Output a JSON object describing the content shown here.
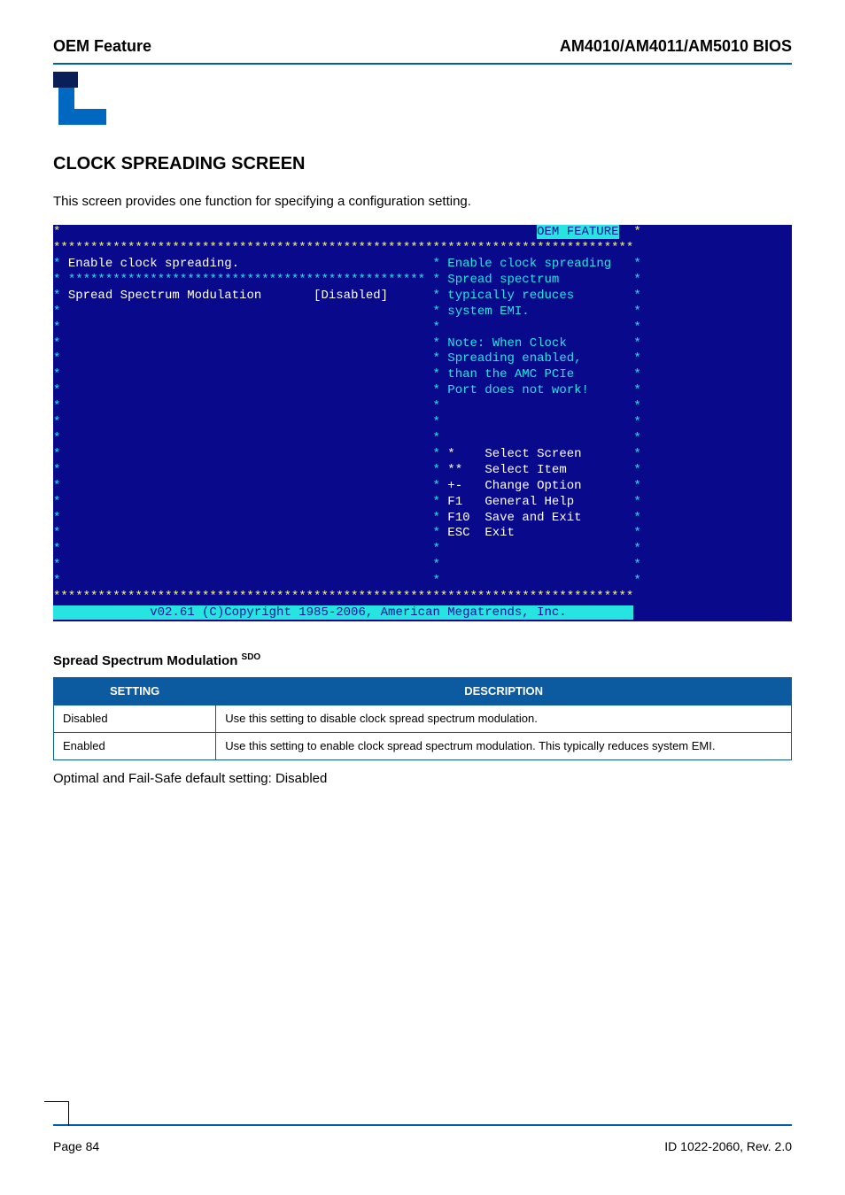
{
  "header": {
    "left": "OEM Feature",
    "right": "AM4010/AM4011/AM5010 BIOS"
  },
  "section": {
    "title": "CLOCK SPREADING SCREEN",
    "intro": "This screen provides one function for specifying a configuration setting."
  },
  "bios": {
    "background_color": "#09098c",
    "text_color_body": "#ffffff",
    "text_color_accent": "#26e5e0",
    "text_color_dark": "#0a1597",
    "text_color_yellow": "#fafb5a",
    "feature_label": "OEM FEATURE",
    "left_title": "Enable clock spreading.",
    "left_divider_pattern": "**************************************************",
    "config_item_label": "Spread Spectrum Modulation",
    "config_item_value": "[Disabled]",
    "help_lines": [
      "Enable clock spreading",
      "Spread spectrum",
      "typically reduces",
      "system EMI."
    ],
    "note_lines": [
      "Note: When Clock",
      "Spreading enabled,",
      "than the AMC PCIe",
      "Port does not work!"
    ],
    "key_lines": [
      {
        "left": "*",
        "right": "Select Screen"
      },
      {
        "left": "**",
        "right": "Select Item"
      },
      {
        "left": "+-",
        "right": "Change Option"
      },
      {
        "left": "F1",
        "right": "General Help"
      },
      {
        "left": "F10",
        "right": "Save and Exit"
      },
      {
        "left": "ESC",
        "right": "Exit"
      }
    ],
    "footer": "v02.61 (C)Copyright 1985-2006, American Megatrends, Inc."
  },
  "table": {
    "title": "Spread Spectrum Modulation",
    "title_sup": "SDO",
    "headers": {
      "setting": "SETTING",
      "description": "DESCRIPTION"
    },
    "rows": [
      {
        "setting": "Disabled",
        "desc": "Use this setting to disable clock spread spectrum modulation."
      },
      {
        "setting": "Enabled",
        "desc": "Use this setting to enable clock spread spectrum modulation. This typically reduces system EMI."
      }
    ],
    "default_note": "Optimal and Fail-Safe default setting: Disabled"
  },
  "footer": {
    "left": "Page 84",
    "right": "ID 1022-2060, Rev. 2.0"
  }
}
